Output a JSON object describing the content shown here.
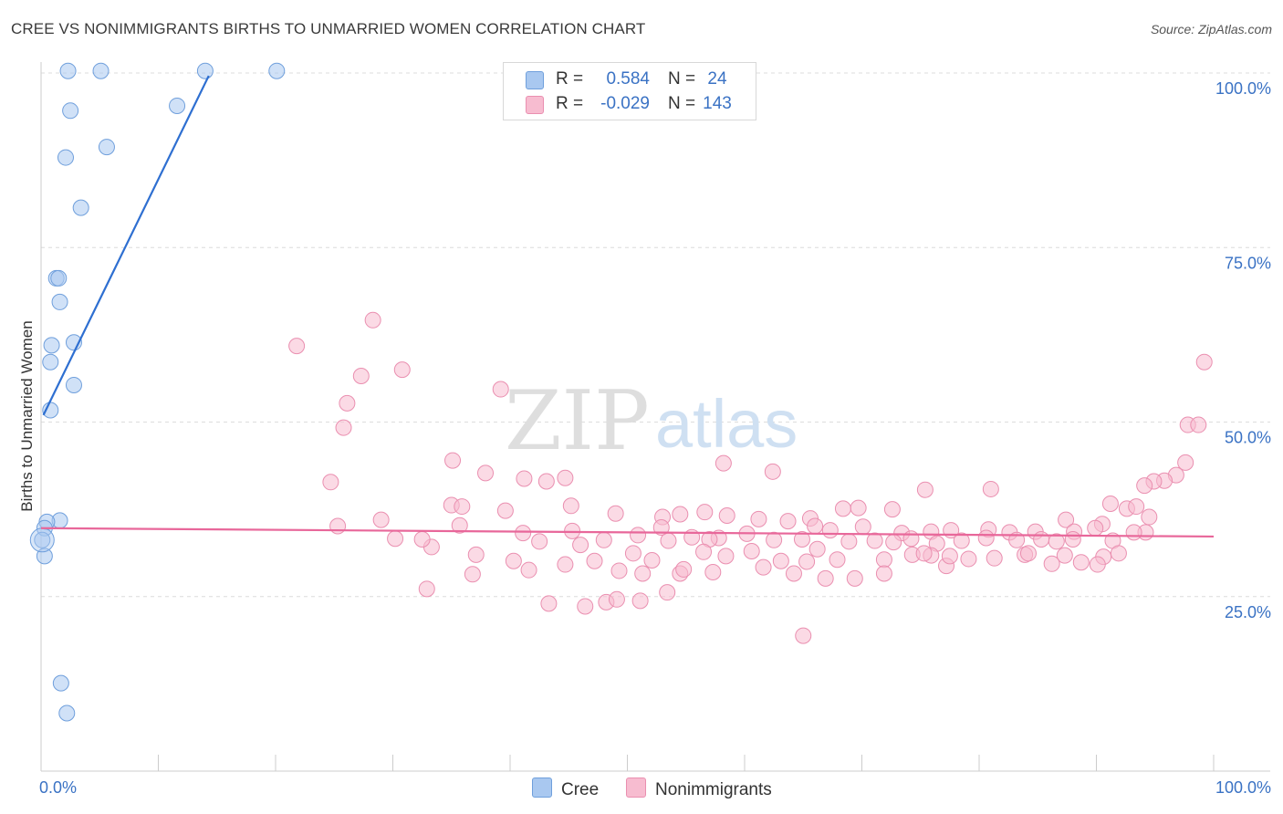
{
  "header": {
    "title": "CREE VS NONIMMIGRANTS BIRTHS TO UNMARRIED WOMEN CORRELATION CHART",
    "source": "Source: ZipAtlas.com"
  },
  "watermark": {
    "zip": "ZIP",
    "atlas": "atlas"
  },
  "legend": {
    "rows": [
      {
        "r_label": "R =",
        "r_value": "0.584",
        "n_label": "N =",
        "n_value": "24",
        "color": "#a9c8f0",
        "border": "#6f9fdc"
      },
      {
        "r_label": "R =",
        "r_value": "-0.029",
        "n_label": "N =",
        "n_value": "143",
        "color": "#f7bcd0",
        "border": "#ea8fb0"
      }
    ]
  },
  "bottom_legend": {
    "cree": "Cree",
    "nonimmigrants": "Nonimmigrants"
  },
  "chart_data": {
    "type": "scatter",
    "title": "CREE VS NONIMMIGRANTS BIRTHS TO UNMARRIED WOMEN CORRELATION CHART",
    "xlabel": "",
    "ylabel": "Births to Unmarried Women",
    "xlim": [
      0,
      100
    ],
    "ylim": [
      0,
      105
    ],
    "x_tick_labels": [
      "0.0%",
      "100.0%"
    ],
    "y_tick_values": [
      25,
      50,
      75,
      100
    ],
    "y_tick_labels": [
      "25.0%",
      "50.0%",
      "75.0%",
      "100.0%"
    ],
    "grid": true,
    "series": [
      {
        "name": "Cree",
        "color": "#a9c8f0",
        "edge": "#6f9fdc",
        "line_color": "#2e6fd1",
        "trend": {
          "x0": 0.2,
          "y0": 51.0,
          "x1": 14.3,
          "y1": 99.6
        },
        "points": [
          [
            2.3,
            100.3
          ],
          [
            5.1,
            100.3
          ],
          [
            14.0,
            100.3
          ],
          [
            20.1,
            100.3
          ],
          [
            2.5,
            94.6
          ],
          [
            11.6,
            95.3
          ],
          [
            2.1,
            87.9
          ],
          [
            5.6,
            89.4
          ],
          [
            3.4,
            80.7
          ],
          [
            1.3,
            70.6
          ],
          [
            1.5,
            70.6
          ],
          [
            1.6,
            67.2
          ],
          [
            0.9,
            61.0
          ],
          [
            2.8,
            61.4
          ],
          [
            0.8,
            58.6
          ],
          [
            2.8,
            55.3
          ],
          [
            0.8,
            51.7
          ],
          [
            1.6,
            35.9
          ],
          [
            0.5,
            35.7
          ],
          [
            0.3,
            34.8
          ],
          [
            0.1,
            33.1
          ],
          [
            0.3,
            30.8
          ],
          [
            1.7,
            12.6
          ],
          [
            2.2,
            8.3
          ]
        ]
      },
      {
        "name": "Nonimmigrants",
        "color": "#f7bcd0",
        "edge": "#ea8fb0",
        "line_color": "#e8679a",
        "trend": {
          "x0": 0.0,
          "y0": 34.8,
          "x1": 100.0,
          "y1": 33.6
        },
        "points": [
          [
            28.3,
            64.6
          ],
          [
            21.8,
            60.9
          ],
          [
            30.8,
            57.5
          ],
          [
            27.3,
            56.6
          ],
          [
            39.2,
            54.7
          ],
          [
            26.1,
            52.7
          ],
          [
            25.8,
            49.2
          ],
          [
            97.8,
            49.6
          ],
          [
            98.7,
            49.6
          ],
          [
            99.2,
            58.6
          ],
          [
            24.7,
            41.4
          ],
          [
            35.1,
            44.5
          ],
          [
            37.9,
            42.7
          ],
          [
            41.2,
            41.9
          ],
          [
            43.1,
            41.5
          ],
          [
            44.7,
            42.0
          ],
          [
            58.2,
            44.1
          ],
          [
            62.4,
            42.9
          ],
          [
            75.4,
            40.3
          ],
          [
            81.0,
            40.4
          ],
          [
            97.6,
            44.2
          ],
          [
            96.8,
            42.4
          ],
          [
            95.8,
            41.6
          ],
          [
            94.9,
            41.5
          ],
          [
            94.1,
            40.9
          ],
          [
            92.6,
            37.6
          ],
          [
            93.4,
            37.9
          ],
          [
            91.2,
            38.3
          ],
          [
            35.0,
            38.1
          ],
          [
            35.9,
            37.9
          ],
          [
            39.6,
            37.3
          ],
          [
            45.2,
            38.0
          ],
          [
            49.0,
            36.9
          ],
          [
            53.0,
            36.4
          ],
          [
            54.5,
            36.8
          ],
          [
            56.6,
            37.1
          ],
          [
            58.5,
            36.6
          ],
          [
            61.2,
            36.1
          ],
          [
            63.7,
            35.8
          ],
          [
            65.6,
            36.2
          ],
          [
            68.4,
            37.6
          ],
          [
            69.7,
            37.7
          ],
          [
            72.6,
            37.5
          ],
          [
            87.4,
            36.0
          ],
          [
            90.5,
            35.4
          ],
          [
            29.0,
            36.0
          ],
          [
            25.3,
            35.1
          ],
          [
            30.2,
            33.3
          ],
          [
            35.7,
            35.2
          ],
          [
            41.1,
            34.1
          ],
          [
            45.3,
            34.4
          ],
          [
            52.9,
            34.9
          ],
          [
            57.8,
            33.4
          ],
          [
            60.2,
            34.0
          ],
          [
            66.0,
            35.1
          ],
          [
            67.3,
            34.5
          ],
          [
            70.1,
            35.0
          ],
          [
            73.4,
            34.1
          ],
          [
            75.9,
            34.3
          ],
          [
            77.6,
            34.5
          ],
          [
            80.8,
            34.6
          ],
          [
            82.6,
            34.2
          ],
          [
            84.8,
            34.3
          ],
          [
            88.1,
            34.3
          ],
          [
            89.9,
            34.8
          ],
          [
            94.2,
            34.2
          ],
          [
            33.3,
            32.1
          ],
          [
            42.5,
            32.9
          ],
          [
            48.0,
            33.1
          ],
          [
            50.9,
            33.8
          ],
          [
            53.5,
            33.0
          ],
          [
            55.5,
            33.5
          ],
          [
            57.0,
            33.2
          ],
          [
            62.5,
            33.1
          ],
          [
            64.9,
            33.2
          ],
          [
            68.9,
            32.9
          ],
          [
            71.1,
            33.0
          ],
          [
            72.7,
            32.8
          ],
          [
            74.2,
            33.3
          ],
          [
            76.4,
            32.6
          ],
          [
            78.5,
            33.0
          ],
          [
            80.6,
            33.4
          ],
          [
            83.2,
            33.1
          ],
          [
            85.3,
            33.2
          ],
          [
            86.6,
            32.9
          ],
          [
            88.0,
            33.2
          ],
          [
            91.4,
            33.0
          ],
          [
            93.2,
            34.2
          ],
          [
            36.8,
            28.2
          ],
          [
            41.6,
            28.8
          ],
          [
            46.0,
            32.4
          ],
          [
            47.2,
            30.1
          ],
          [
            50.5,
            31.2
          ],
          [
            52.1,
            30.2
          ],
          [
            54.5,
            28.3
          ],
          [
            56.5,
            31.4
          ],
          [
            58.4,
            30.8
          ],
          [
            60.6,
            31.5
          ],
          [
            63.1,
            30.1
          ],
          [
            65.3,
            30.0
          ],
          [
            66.2,
            31.8
          ],
          [
            67.9,
            30.3
          ],
          [
            71.9,
            30.3
          ],
          [
            74.3,
            31.0
          ],
          [
            75.9,
            30.9
          ],
          [
            77.2,
            29.4
          ],
          [
            79.1,
            30.4
          ],
          [
            81.3,
            30.5
          ],
          [
            83.9,
            31.0
          ],
          [
            87.3,
            30.9
          ],
          [
            88.7,
            29.9
          ],
          [
            90.6,
            30.7
          ],
          [
            32.5,
            33.2
          ],
          [
            37.1,
            31.0
          ],
          [
            40.3,
            30.1
          ],
          [
            44.7,
            29.6
          ],
          [
            49.3,
            28.7
          ],
          [
            51.3,
            28.3
          ],
          [
            54.8,
            28.9
          ],
          [
            57.3,
            28.5
          ],
          [
            61.6,
            29.2
          ],
          [
            64.2,
            28.3
          ],
          [
            66.9,
            27.6
          ],
          [
            69.4,
            27.6
          ],
          [
            71.9,
            28.3
          ],
          [
            75.3,
            31.2
          ],
          [
            77.5,
            30.8
          ],
          [
            84.2,
            31.2
          ],
          [
            86.2,
            29.7
          ],
          [
            90.1,
            29.6
          ],
          [
            94.5,
            36.4
          ],
          [
            91.9,
            31.2
          ],
          [
            32.9,
            26.1
          ],
          [
            43.3,
            24.0
          ],
          [
            46.4,
            23.6
          ],
          [
            48.2,
            24.2
          ],
          [
            49.1,
            24.6
          ],
          [
            51.1,
            24.4
          ],
          [
            53.4,
            25.6
          ],
          [
            65.0,
            19.4
          ]
        ]
      }
    ]
  }
}
